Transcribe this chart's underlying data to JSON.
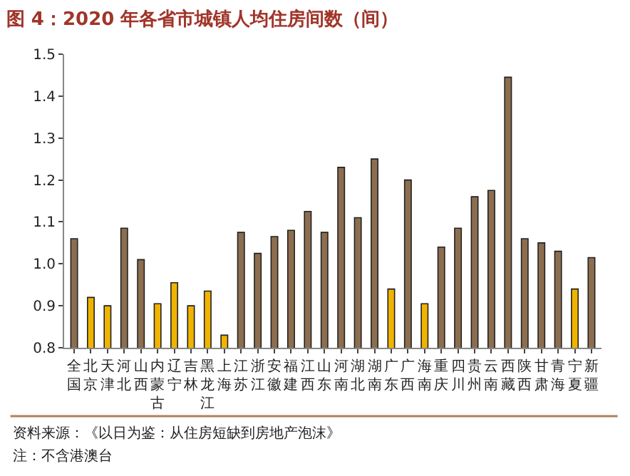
{
  "chart_data": {
    "type": "bar",
    "title": "图 4：2020 年各省市城镇人均住房间数（间）",
    "categories": [
      "全国",
      "北京",
      "天津",
      "河北",
      "山西",
      "内蒙古",
      "辽宁",
      "吉林",
      "黑龙江",
      "上海",
      "江苏",
      "浙江",
      "安徽",
      "福建",
      "江西",
      "山东",
      "河南",
      "湖北",
      "湖南",
      "广东",
      "广西",
      "海南",
      "重庆",
      "四川",
      "贵州",
      "云南",
      "西藏",
      "陕西",
      "甘肃",
      "青海",
      "宁夏",
      "新疆"
    ],
    "values": [
      1.06,
      0.92,
      0.9,
      1.085,
      1.01,
      0.905,
      0.955,
      0.9,
      0.935,
      0.83,
      1.075,
      1.025,
      1.065,
      1.08,
      1.125,
      1.075,
      1.23,
      1.11,
      1.25,
      0.94,
      1.2,
      0.905,
      1.04,
      1.085,
      1.16,
      1.175,
      1.445,
      1.06,
      1.05,
      1.03,
      0.94,
      1.015
    ],
    "colors": [
      "#8c6e4f",
      "#f0b400",
      "#f0b400",
      "#8c6e4f",
      "#8c6e4f",
      "#f0b400",
      "#f0b400",
      "#f0b400",
      "#f0b400",
      "#f0b400",
      "#8c6e4f",
      "#8c6e4f",
      "#8c6e4f",
      "#8c6e4f",
      "#8c6e4f",
      "#8c6e4f",
      "#8c6e4f",
      "#8c6e4f",
      "#8c6e4f",
      "#f0b400",
      "#8c6e4f",
      "#f0b400",
      "#8c6e4f",
      "#8c6e4f",
      "#8c6e4f",
      "#8c6e4f",
      "#8c6e4f",
      "#8c6e4f",
      "#8c6e4f",
      "#8c6e4f",
      "#f0b400",
      "#8c6e4f"
    ],
    "ylim": [
      0.8,
      1.5
    ],
    "yticks": [
      {
        "value": 0.8,
        "label": "0.8"
      },
      {
        "value": 0.9,
        "label": "0.9"
      },
      {
        "value": 1.0,
        "label": "1.0"
      },
      {
        "value": 1.1,
        "label": "1.1"
      },
      {
        "value": 1.2,
        "label": "1.2"
      },
      {
        "value": 1.3,
        "label": "1.3"
      },
      {
        "value": 1.4,
        "label": "1.4"
      },
      {
        "value": 1.5,
        "label": "1.5"
      }
    ],
    "grid": false,
    "annotations": [
      "资料来源：《以日为鉴：从住房短缺到房地产泡沫》",
      "注：不含港澳台"
    ]
  }
}
